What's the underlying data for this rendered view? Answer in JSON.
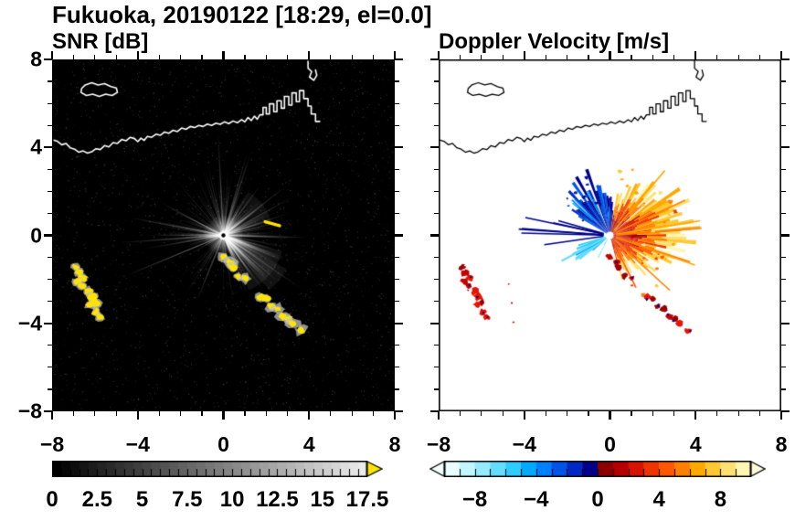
{
  "title": "Fukuoka, 20190122 [18:29, el=0.0]",
  "panels": {
    "snr": {
      "title": "SNR [dB]",
      "x_tick_labels": [
        "−8",
        "−4",
        "0",
        "4",
        "8"
      ],
      "x_tick_values": [
        -8,
        -4,
        0,
        4,
        8
      ],
      "y_tick_labels": [
        "8",
        "4",
        "0",
        "−4",
        "−8"
      ],
      "y_tick_values": [
        8,
        4,
        0,
        -4,
        -8
      ],
      "colorbar": {
        "tick_labels": [
          "0",
          "2.5",
          "5",
          "7.5",
          "10",
          "12.5",
          "15",
          "17.5"
        ],
        "tick_values": [
          0,
          2.5,
          5,
          7.5,
          10,
          12.5,
          15,
          17.5
        ],
        "min": 0,
        "max": 17.5,
        "colormap": "black-to-white grayscale",
        "over_arrow_color": "#ffe400"
      }
    },
    "doppler": {
      "title": "Doppler Velocity [m/s]",
      "x_tick_labels": [
        "−8",
        "−4",
        "0",
        "4",
        "8"
      ],
      "x_tick_values": [
        -8,
        -4,
        0,
        4,
        8
      ],
      "colorbar": {
        "tick_labels": [
          "−8",
          "−4",
          "0",
          "4",
          "8"
        ],
        "tick_values": [
          -8,
          -4,
          0,
          4,
          8
        ],
        "min": -10,
        "max": 10,
        "under_arrow_color": "#f2ffff",
        "over_arrow_color": "#fffbdc"
      }
    }
  },
  "colors": {
    "snr_background": "#000000",
    "snr_saturated": "#ffe400",
    "coast_left": "#ffffff",
    "coast_right": "#000000",
    "velocity_negative_steps": [
      "#eaffff",
      "#c2f6ff",
      "#96ecff",
      "#64deff",
      "#30ccff",
      "#00aaff",
      "#0080ff",
      "#0054e8",
      "#0028c4",
      "#000088"
    ],
    "velocity_positive_steps": [
      "#8c0000",
      "#b40000",
      "#d81400",
      "#f03400",
      "#ff5800",
      "#ff8000",
      "#ffa800",
      "#ffc832",
      "#ffe070",
      "#fff6b4"
    ]
  },
  "chart_data": [
    {
      "type": "heatmap",
      "panel": "left",
      "title": "SNR [dB]",
      "site": "Fukuoka",
      "date": "20190122",
      "time": "18:29",
      "elevation_deg": 0.0,
      "xlim": [
        -8,
        8
      ],
      "ylim": [
        -8,
        8
      ],
      "x_ticks": [
        -8,
        -4,
        0,
        4,
        8
      ],
      "y_ticks": [
        -8,
        -4,
        0,
        4,
        8
      ],
      "background": "black (low SNR ~0 dB)",
      "colorbar": {
        "min": 0,
        "max": 17.5,
        "tick_step": 2.5,
        "labeled_ticks": [
          0,
          2.5,
          5,
          7.5,
          10,
          12.5,
          15,
          17.5
        ],
        "colormap": "black-to-white grayscale",
        "over_range": "yellow right arrow (>17.5 dB)"
      },
      "features": [
        {
          "name": "radar-origin",
          "x": 0,
          "y": 0,
          "value": "bright center with dark dot"
        },
        {
          "name": "radial-noise-spokes",
          "extent": "0.5-4.5 units all azimuths",
          "value_dB": "2-10, brightest toward E/SE"
        },
        {
          "name": "clutter-arc",
          "from": [
            0.0,
            -1.0
          ],
          "to": [
            3.6,
            -4.4
          ],
          "value_dB": ">17.5 (saturated yellow, gray fringe)"
        },
        {
          "name": "clutter-patches-west",
          "points": [
            [
              -6.8,
              -1.9
            ],
            [
              -6.1,
              -2.9
            ],
            [
              -5.9,
              -3.6
            ]
          ],
          "value_dB": ">17.5 (saturated yellow)"
        },
        {
          "name": "short-echo-streak",
          "from": [
            1.95,
            0.6
          ],
          "to": [
            2.6,
            0.45
          ],
          "value_dB": ">17.5"
        },
        {
          "name": "coastline",
          "path": "white outline entering west edge near y=4.3, jagged NE to harbor piers x=1.7..4.5 y=5.1..6.7, island near (-5.7,6.6), spur at top near x=4.1"
        }
      ]
    },
    {
      "type": "heatmap",
      "panel": "right",
      "title": "Doppler Velocity [m/s]",
      "xlim": [
        -8,
        8
      ],
      "ylim": [
        -8,
        8
      ],
      "x_ticks": [
        -8,
        -4,
        0,
        4,
        8
      ],
      "y_ticks": [
        -8,
        -4,
        0,
        4,
        8
      ],
      "background": "white (no data)",
      "colorbar": {
        "min": -10,
        "max": 10,
        "tick_step": 1,
        "labeled_ticks": [
          -8,
          -4,
          0,
          4,
          8
        ],
        "colormap": "pale-cyan→navy for negative, dark-red→red→orange→pale-yellow for positive",
        "under_range": "white left arrow",
        "over_range": "pale-yellow right arrow"
      },
      "features": [
        {
          "name": "positive-velocity-fan",
          "azimuth": "E to SE of radar",
          "extent": "up to ~3.5 units",
          "value_ms": "+2 to +8 (red/orange/yellow)"
        },
        {
          "name": "negative-velocity-fan",
          "azimuth": "N to NW of radar",
          "extent": "up to ~3 units",
          "value_ms": "-2 to -10 (navy/blue)"
        },
        {
          "name": "negative-streaks-west",
          "azimuth": "W",
          "extent": "up to ~4 units",
          "value_ms": "~-9 thin navy rays"
        },
        {
          "name": "negative-cyan-streaks",
          "azimuth": "SW of radar",
          "extent": "up to ~2.5 units",
          "value_ms": "-4 to -7 (cyan)"
        },
        {
          "name": "clutter-arc",
          "from": [
            0.0,
            -1.0
          ],
          "to": [
            3.6,
            -4.4
          ],
          "value_ms": "mixed ~0 (red/dark-red with navy specks)"
        },
        {
          "name": "clutter-patches-west",
          "points": [
            [
              -6.8,
              -1.9
            ],
            [
              -6.1,
              -2.9
            ],
            [
              -5.9,
              -3.6
            ]
          ],
          "value_ms": "mixed (red with navy specks)"
        },
        {
          "name": "coastline",
          "path": "same outline as left panel, drawn in black"
        }
      ]
    }
  ]
}
